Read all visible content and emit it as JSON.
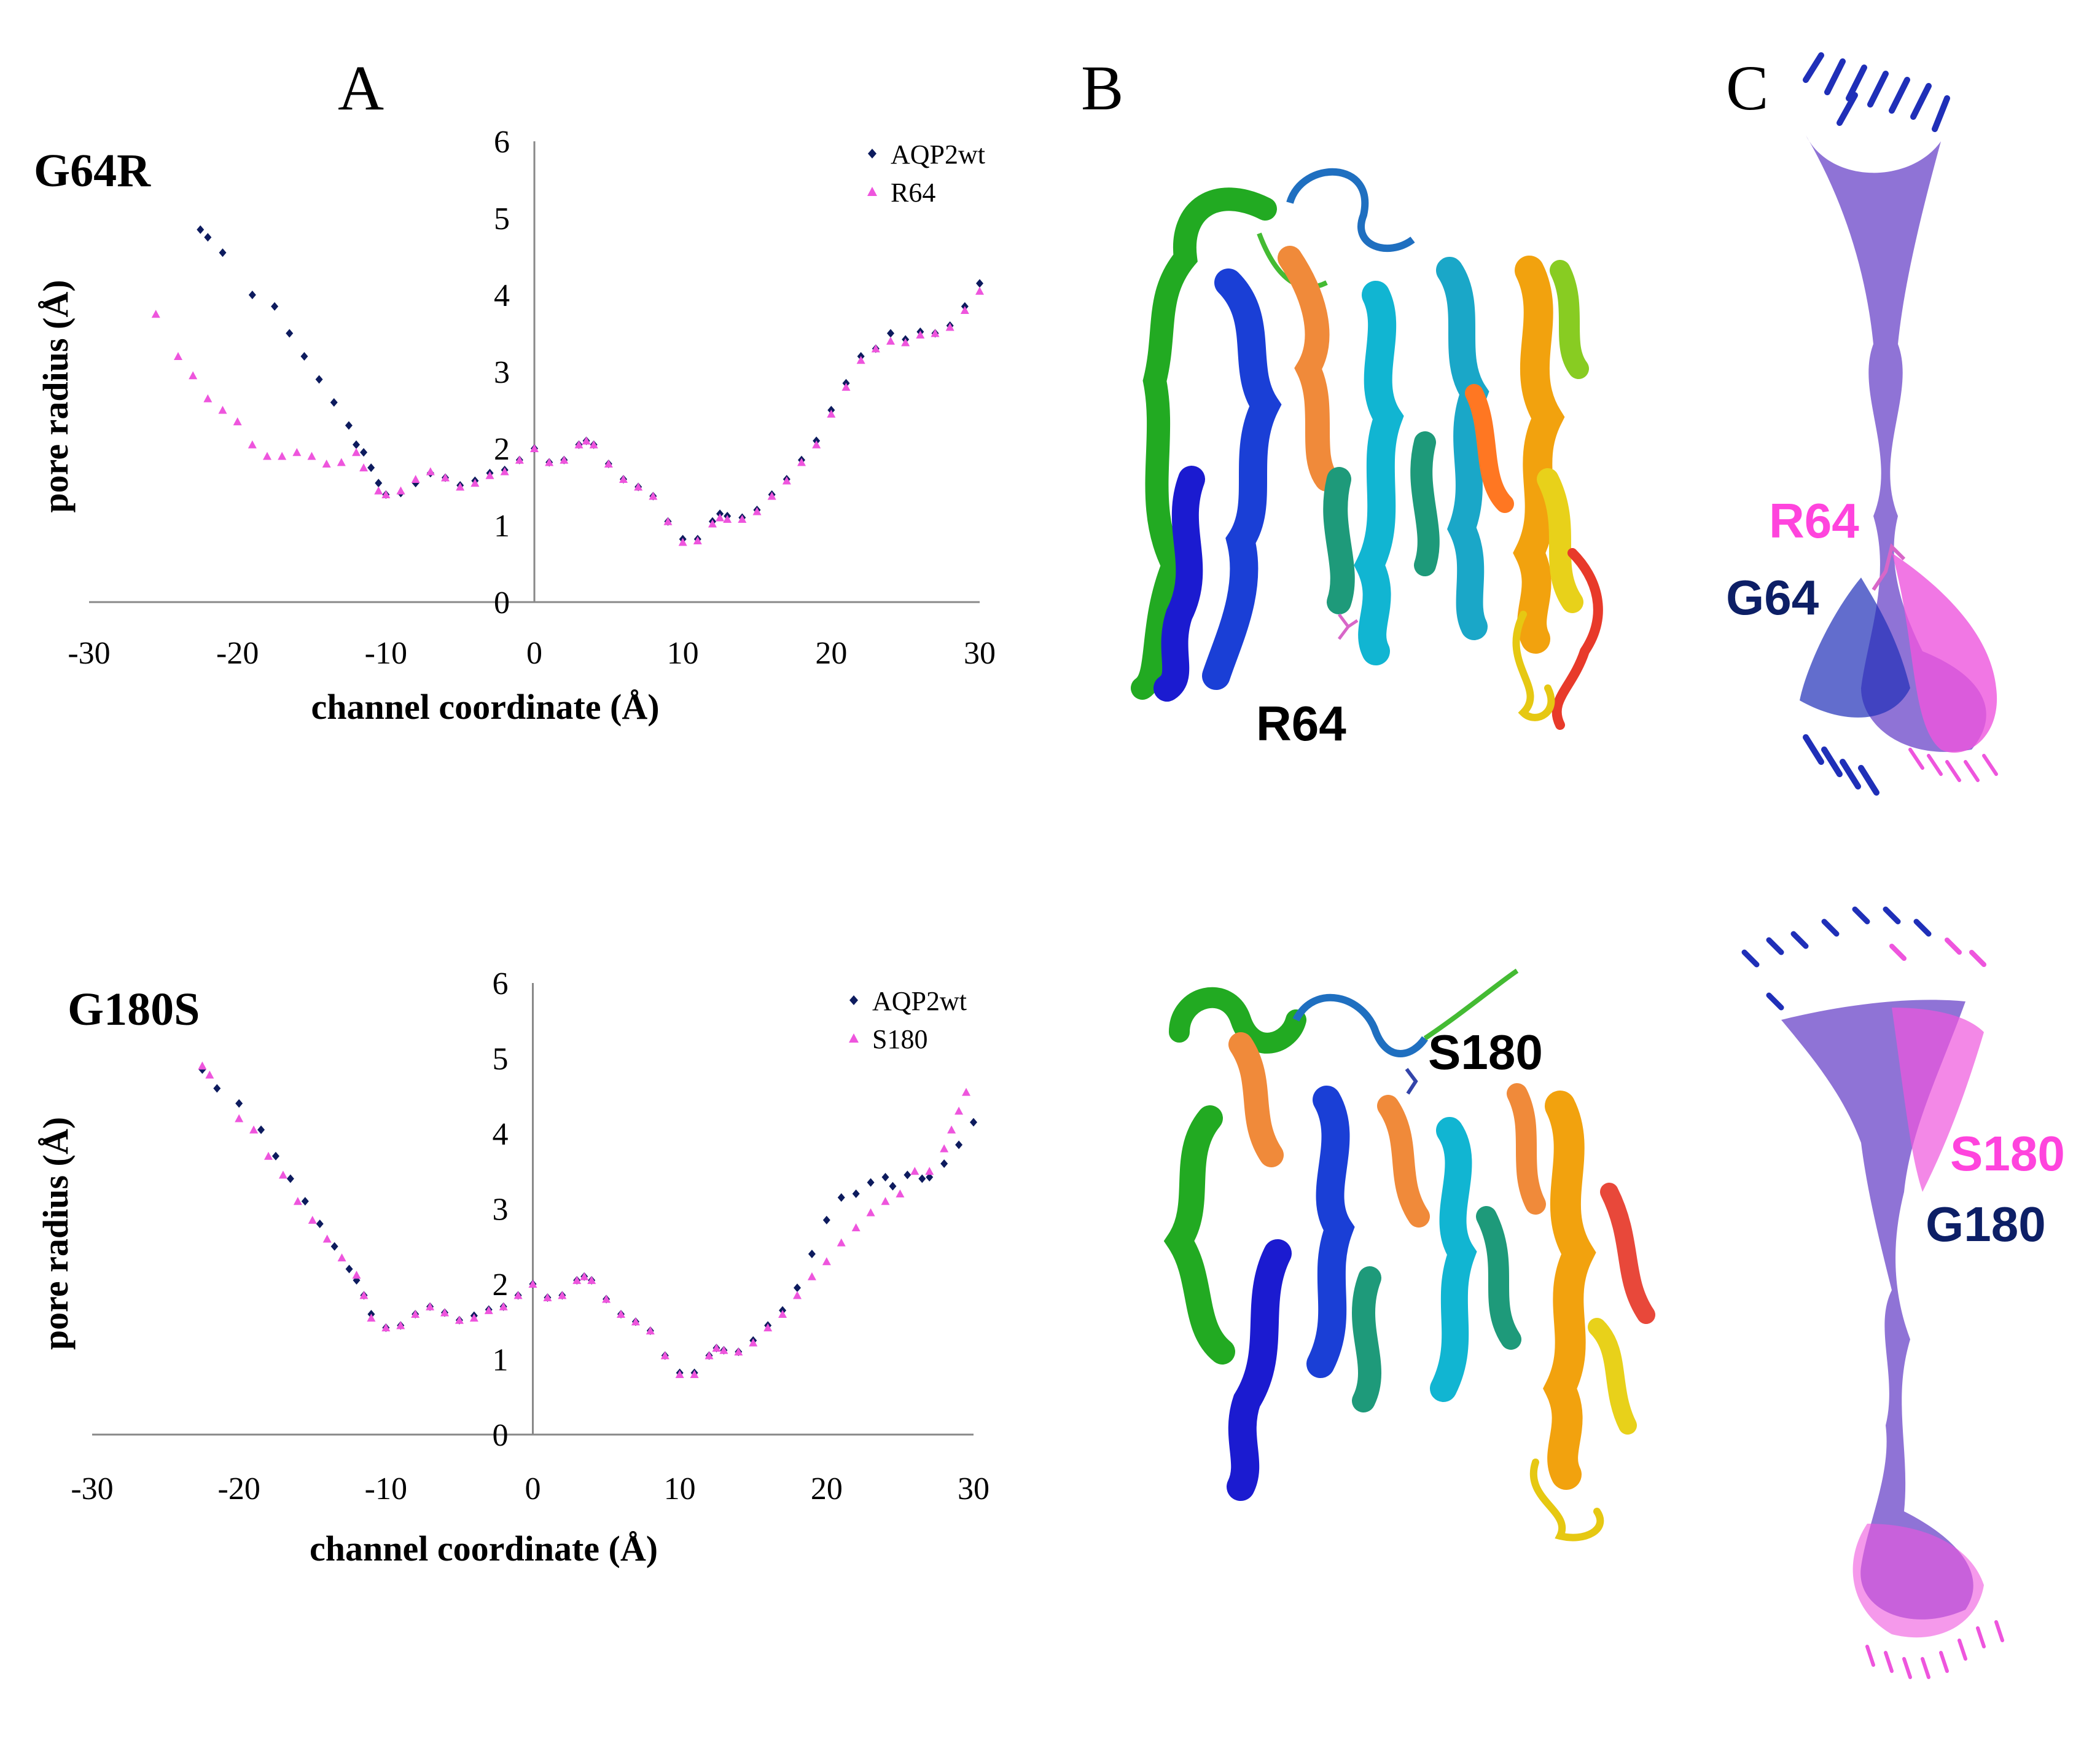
{
  "panel_letters": {
    "a": "A",
    "b": "B",
    "c": "C"
  },
  "colors": {
    "wt": "#0d1b5e",
    "mutant": "#ee55dd",
    "axis": "#888888",
    "label_mutant": "#ff44dd",
    "label_wt": "#0d1f66"
  },
  "structure_labels": {
    "top_b_residue": "R64",
    "top_c_mutant": "R64",
    "top_c_wt": "G64",
    "bottom_b_residue": "S180",
    "bottom_c_mutant": "S180",
    "bottom_c_wt": "G180"
  },
  "chart_data": [
    {
      "type": "scatter",
      "mutation_title": "G64R",
      "xlabel": "channel coordinate (Å)",
      "ylabel": "pore radius (Å)",
      "xlim": [
        -30,
        30
      ],
      "ylim": [
        0,
        6
      ],
      "xticks": [
        -30,
        -20,
        -10,
        0,
        10,
        20,
        30
      ],
      "yticks": [
        0,
        1,
        2,
        3,
        4,
        5,
        6
      ],
      "grid": false,
      "legend_position": "top-right",
      "series": [
        {
          "name": "AQP2wt",
          "marker": "diamond",
          "color": "#0d1b5e",
          "points": [
            [
              -22.5,
              4.85
            ],
            [
              -22,
              4.75
            ],
            [
              -21,
              4.55
            ],
            [
              -19,
              4.0
            ],
            [
              -17.5,
              3.85
            ],
            [
              -16.5,
              3.5
            ],
            [
              -15.5,
              3.2
            ],
            [
              -14.5,
              2.9
            ],
            [
              -13.5,
              2.6
            ],
            [
              -12.5,
              2.3
            ],
            [
              -12,
              2.05
            ],
            [
              -11.5,
              1.95
            ],
            [
              -11,
              1.75
            ],
            [
              -10.5,
              1.55
            ],
            [
              -10,
              1.4
            ],
            [
              -9,
              1.42
            ],
            [
              -8,
              1.55
            ],
            [
              -7,
              1.68
            ],
            [
              -6,
              1.62
            ],
            [
              -5,
              1.52
            ],
            [
              -4,
              1.58
            ],
            [
              -3,
              1.68
            ],
            [
              -2,
              1.72
            ],
            [
              -1,
              1.85
            ],
            [
              0,
              2.0
            ],
            [
              1,
              1.82
            ],
            [
              2,
              1.85
            ],
            [
              3,
              2.05
            ],
            [
              3.5,
              2.1
            ],
            [
              4,
              2.05
            ],
            [
              5,
              1.8
            ],
            [
              6,
              1.6
            ],
            [
              7,
              1.5
            ],
            [
              8,
              1.38
            ],
            [
              9,
              1.05
            ],
            [
              10,
              0.82
            ],
            [
              11,
              0.82
            ],
            [
              12,
              1.05
            ],
            [
              12.5,
              1.15
            ],
            [
              13,
              1.12
            ],
            [
              14,
              1.1
            ],
            [
              15,
              1.2
            ],
            [
              16,
              1.4
            ],
            [
              17,
              1.6
            ],
            [
              18,
              1.85
            ],
            [
              19,
              2.1
            ],
            [
              20,
              2.5
            ],
            [
              21,
              2.85
            ],
            [
              22,
              3.2
            ],
            [
              23,
              3.3
            ],
            [
              24,
              3.5
            ],
            [
              25,
              3.42
            ],
            [
              26,
              3.52
            ],
            [
              27,
              3.5
            ],
            [
              28,
              3.6
            ],
            [
              29,
              3.85
            ],
            [
              30,
              4.15
            ]
          ]
        },
        {
          "name": "R64",
          "marker": "triangle",
          "color": "#ee55dd",
          "points": [
            [
              -25.5,
              3.75
            ],
            [
              -24,
              3.2
            ],
            [
              -23,
              2.95
            ],
            [
              -22,
              2.65
            ],
            [
              -21,
              2.5
            ],
            [
              -20,
              2.35
            ],
            [
              -19,
              2.05
            ],
            [
              -18,
              1.9
            ],
            [
              -17,
              1.9
            ],
            [
              -16,
              1.95
            ],
            [
              -15,
              1.9
            ],
            [
              -14,
              1.8
            ],
            [
              -13,
              1.82
            ],
            [
              -12,
              1.95
            ],
            [
              -11.5,
              1.75
            ],
            [
              -10.5,
              1.45
            ],
            [
              -10,
              1.4
            ],
            [
              -9,
              1.45
            ],
            [
              -8,
              1.6
            ],
            [
              -7,
              1.7
            ],
            [
              -6,
              1.62
            ],
            [
              -5,
              1.5
            ],
            [
              -4,
              1.55
            ],
            [
              -3,
              1.65
            ],
            [
              -2,
              1.7
            ],
            [
              -1,
              1.85
            ],
            [
              0,
              2.0
            ],
            [
              1,
              1.82
            ],
            [
              2,
              1.85
            ],
            [
              3,
              2.05
            ],
            [
              3.5,
              2.1
            ],
            [
              4,
              2.05
            ],
            [
              5,
              1.8
            ],
            [
              6,
              1.6
            ],
            [
              7,
              1.5
            ],
            [
              8,
              1.38
            ],
            [
              9,
              1.05
            ],
            [
              10,
              0.78
            ],
            [
              11,
              0.8
            ],
            [
              12,
              1.02
            ],
            [
              12.5,
              1.1
            ],
            [
              13,
              1.08
            ],
            [
              14,
              1.08
            ],
            [
              15,
              1.18
            ],
            [
              16,
              1.38
            ],
            [
              17,
              1.58
            ],
            [
              18,
              1.82
            ],
            [
              19,
              2.05
            ],
            [
              20,
              2.45
            ],
            [
              21,
              2.8
            ],
            [
              22,
              3.15
            ],
            [
              23,
              3.3
            ],
            [
              24,
              3.4
            ],
            [
              25,
              3.38
            ],
            [
              26,
              3.48
            ],
            [
              27,
              3.5
            ],
            [
              28,
              3.58
            ],
            [
              29,
              3.8
            ],
            [
              30,
              4.05
            ]
          ]
        }
      ]
    },
    {
      "type": "scatter",
      "mutation_title": "G180S",
      "xlabel": "channel coordinate (Å)",
      "ylabel": "pore radius (Å)",
      "xlim": [
        -30,
        30
      ],
      "ylim": [
        0,
        6
      ],
      "xticks": [
        -30,
        -20,
        -10,
        0,
        10,
        20,
        30
      ],
      "yticks": [
        0,
        1,
        2,
        3,
        4,
        5,
        6
      ],
      "grid": false,
      "legend_position": "top-right",
      "series": [
        {
          "name": "AQP2wt",
          "marker": "diamond",
          "color": "#0d1b5e",
          "points": [
            [
              -22.5,
              4.85
            ],
            [
              -21.5,
              4.6
            ],
            [
              -20,
              4.4
            ],
            [
              -18.5,
              4.05
            ],
            [
              -17.5,
              3.7
            ],
            [
              -16.5,
              3.4
            ],
            [
              -15.5,
              3.1
            ],
            [
              -14.5,
              2.8
            ],
            [
              -13.5,
              2.5
            ],
            [
              -12.5,
              2.2
            ],
            [
              -12,
              2.05
            ],
            [
              -11.5,
              1.85
            ],
            [
              -11,
              1.6
            ],
            [
              -10,
              1.42
            ],
            [
              -9,
              1.45
            ],
            [
              -8,
              1.6
            ],
            [
              -7,
              1.7
            ],
            [
              -6,
              1.62
            ],
            [
              -5,
              1.52
            ],
            [
              -4,
              1.58
            ],
            [
              -3,
              1.66
            ],
            [
              -2,
              1.7
            ],
            [
              -1,
              1.85
            ],
            [
              0,
              2.0
            ],
            [
              1,
              1.82
            ],
            [
              2,
              1.85
            ],
            [
              3,
              2.05
            ],
            [
              3.5,
              2.1
            ],
            [
              4,
              2.05
            ],
            [
              5,
              1.8
            ],
            [
              6,
              1.6
            ],
            [
              7,
              1.5
            ],
            [
              8,
              1.38
            ],
            [
              9,
              1.05
            ],
            [
              10,
              0.82
            ],
            [
              11,
              0.82
            ],
            [
              12,
              1.05
            ],
            [
              12.5,
              1.15
            ],
            [
              13,
              1.12
            ],
            [
              14,
              1.1
            ],
            [
              15,
              1.25
            ],
            [
              16,
              1.45
            ],
            [
              17,
              1.65
            ],
            [
              18,
              1.95
            ],
            [
              19,
              2.4
            ],
            [
              20,
              2.85
            ],
            [
              21,
              3.15
            ],
            [
              22,
              3.2
            ],
            [
              23,
              3.35
            ],
            [
              24,
              3.42
            ],
            [
              24.5,
              3.3
            ],
            [
              25.5,
              3.45
            ],
            [
              26.5,
              3.4
            ],
            [
              27,
              3.42
            ],
            [
              28,
              3.6
            ],
            [
              29,
              3.85
            ],
            [
              30,
              4.15
            ]
          ]
        },
        {
          "name": "S180",
          "marker": "triangle",
          "color": "#ee55dd",
          "points": [
            [
              -22.5,
              4.9
            ],
            [
              -22,
              4.78
            ],
            [
              -20,
              4.2
            ],
            [
              -19,
              4.05
            ],
            [
              -18,
              3.7
            ],
            [
              -17,
              3.45
            ],
            [
              -16,
              3.1
            ],
            [
              -15,
              2.85
            ],
            [
              -14,
              2.6
            ],
            [
              -13,
              2.35
            ],
            [
              -12,
              2.12
            ],
            [
              -11.5,
              1.85
            ],
            [
              -11,
              1.55
            ],
            [
              -10,
              1.42
            ],
            [
              -9,
              1.45
            ],
            [
              -8,
              1.6
            ],
            [
              -7,
              1.7
            ],
            [
              -6,
              1.62
            ],
            [
              -5,
              1.52
            ],
            [
              -4,
              1.55
            ],
            [
              -3,
              1.65
            ],
            [
              -2,
              1.7
            ],
            [
              -1,
              1.85
            ],
            [
              0,
              2.0
            ],
            [
              1,
              1.82
            ],
            [
              2,
              1.85
            ],
            [
              3,
              2.05
            ],
            [
              3.5,
              2.1
            ],
            [
              4,
              2.05
            ],
            [
              5,
              1.8
            ],
            [
              6,
              1.6
            ],
            [
              7,
              1.5
            ],
            [
              8,
              1.38
            ],
            [
              9,
              1.05
            ],
            [
              10,
              0.8
            ],
            [
              11,
              0.8
            ],
            [
              12,
              1.05
            ],
            [
              12.5,
              1.15
            ],
            [
              13,
              1.12
            ],
            [
              14,
              1.1
            ],
            [
              15,
              1.22
            ],
            [
              16,
              1.42
            ],
            [
              17,
              1.6
            ],
            [
              18,
              1.85
            ],
            [
              19,
              2.1
            ],
            [
              20,
              2.3
            ],
            [
              21,
              2.55
            ],
            [
              22,
              2.75
            ],
            [
              23,
              2.95
            ],
            [
              24,
              3.1
            ],
            [
              25,
              3.2
            ],
            [
              26,
              3.5
            ],
            [
              27,
              3.5
            ],
            [
              28,
              3.8
            ],
            [
              28.5,
              4.05
            ],
            [
              29,
              4.3
            ],
            [
              29.5,
              4.55
            ]
          ]
        }
      ]
    }
  ]
}
